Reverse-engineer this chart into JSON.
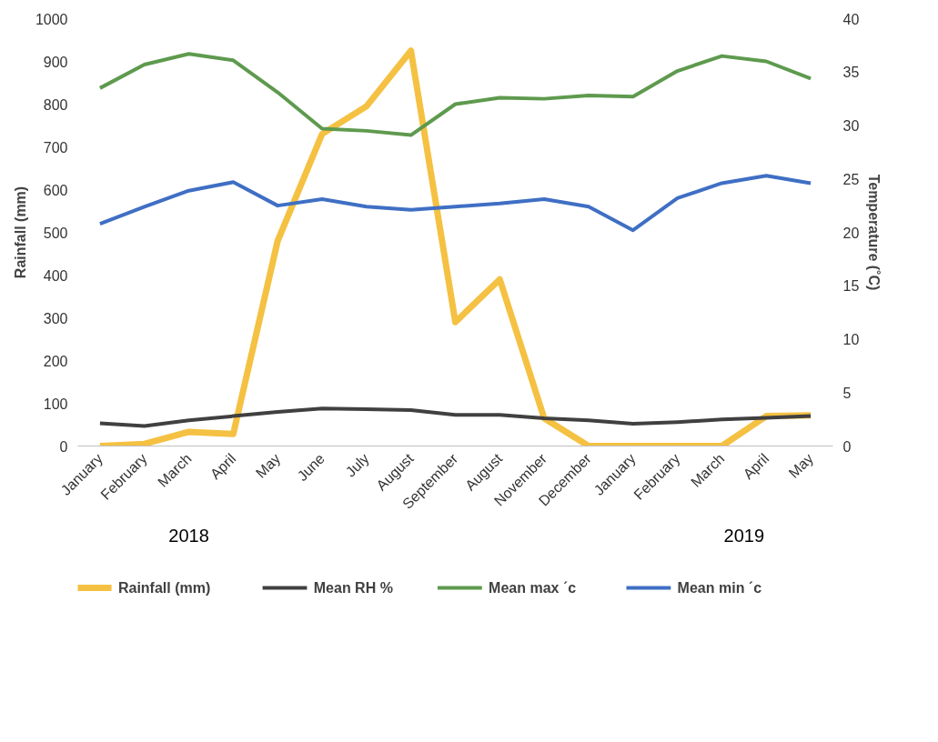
{
  "chart_data": {
    "type": "line",
    "ylabel": "Rainfall (mm)",
    "y2label": "Temperature (˚C)",
    "categories": [
      "January",
      "February",
      "March",
      "April",
      "May",
      "June",
      "July",
      "August",
      "September",
      "August",
      "November",
      "December",
      "January",
      "February",
      "March",
      "April",
      "May"
    ],
    "series": [
      {
        "name": "Rainfall (mm)",
        "color": "#f5c142",
        "values": [
          0,
          5,
          33,
          28,
          480,
          730,
          795,
          925,
          290,
          390,
          65,
          0,
          0,
          0,
          0,
          70,
          72
        ]
      },
      {
        "name": "Mean RH %",
        "color": "#404040",
        "values": [
          53,
          47,
          60,
          70,
          80,
          88,
          86,
          84,
          73,
          73,
          65,
          60,
          52,
          56,
          62,
          66,
          70
        ]
      },
      {
        "name": "Mean max ˊc",
        "color": "#5e9a4e",
        "axis": "y2",
        "values": [
          33.5,
          35.7,
          36.7,
          36.1,
          33.1,
          29.7,
          29.5,
          29.1,
          32.0,
          32.6,
          32.5,
          32.8,
          32.7,
          35.1,
          36.5,
          36.0,
          34.4
        ]
      },
      {
        "name": "Mean min ˊc",
        "color": "#3f6fc4",
        "axis": "y2",
        "values": [
          20.8,
          22.4,
          23.9,
          24.7,
          22.5,
          23.1,
          22.4,
          22.1,
          22.4,
          22.7,
          23.1,
          22.4,
          20.2,
          23.2,
          24.6,
          25.3,
          24.6
        ]
      }
    ],
    "ylim": [
      0,
      1000
    ],
    "yticks": [
      0,
      100,
      200,
      300,
      400,
      500,
      600,
      700,
      800,
      900,
      1000
    ],
    "y2lim": [
      0,
      40
    ],
    "y2ticks": [
      0,
      5,
      10,
      15,
      20,
      25,
      30,
      35,
      40
    ],
    "annotations": [
      "2018",
      "2019"
    ],
    "legend": "bottom",
    "grid": false,
    "marker": "none",
    "line_style": "solid"
  }
}
